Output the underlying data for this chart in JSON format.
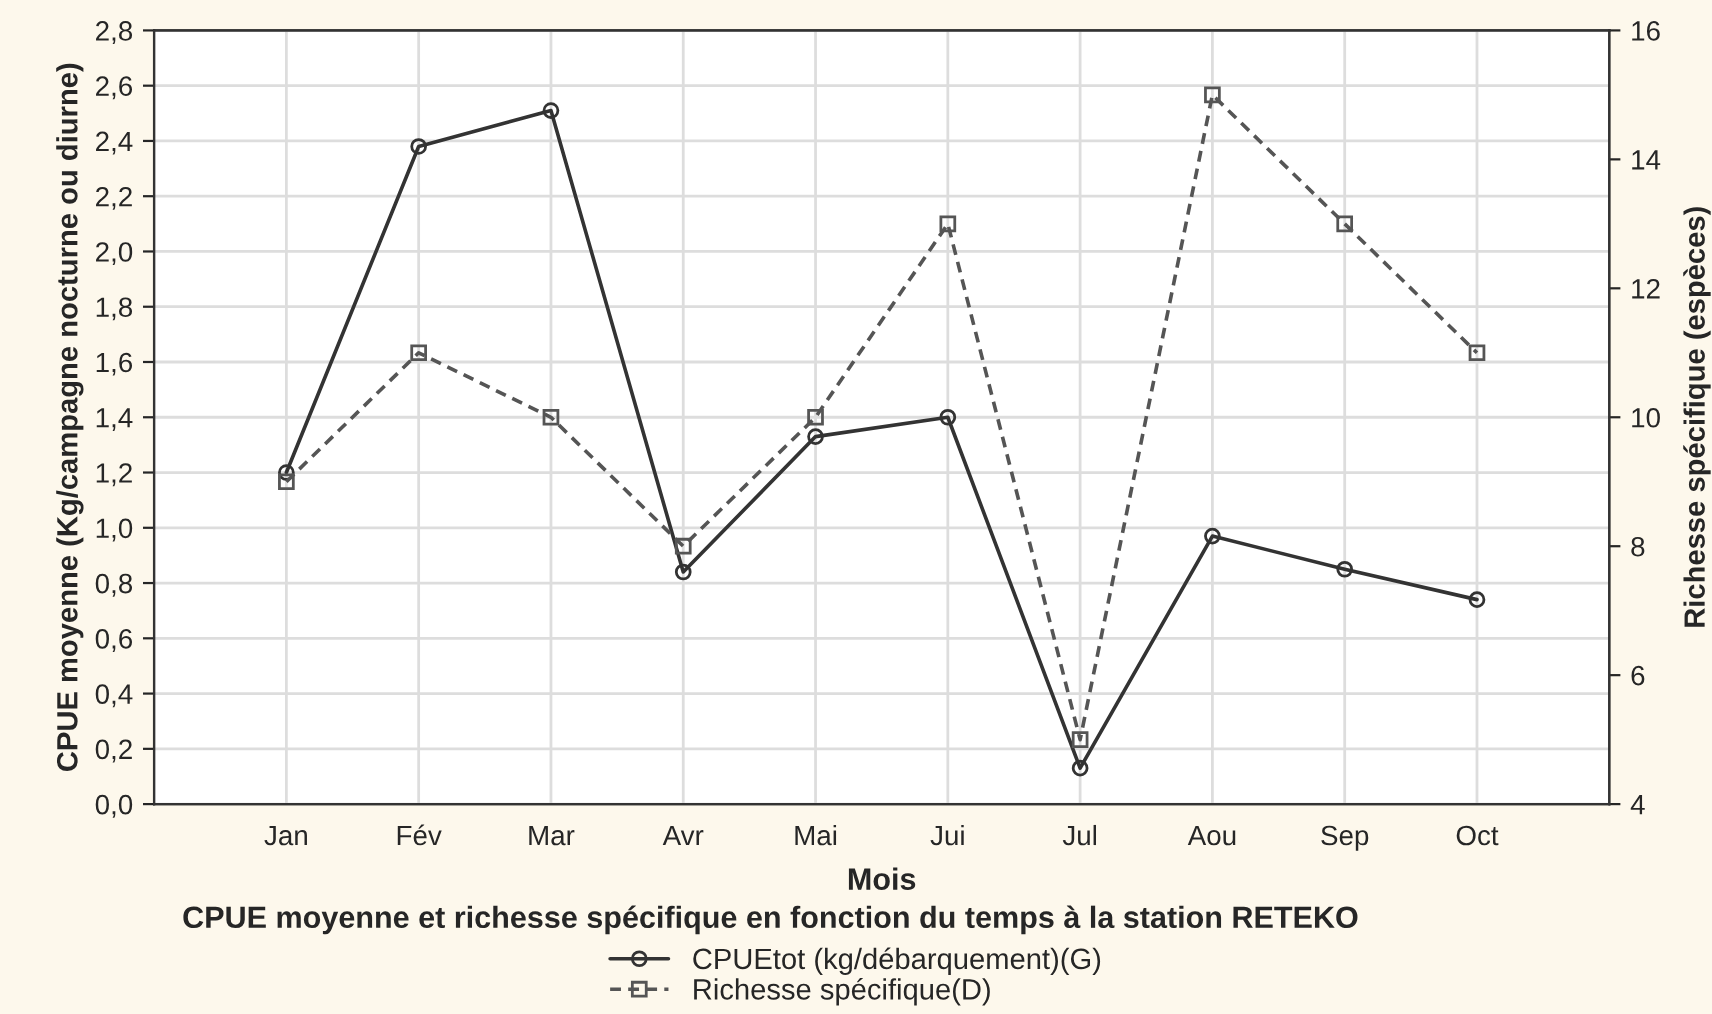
{
  "chart_data": {
    "type": "line",
    "title": "CPUE moyenne et richesse spécifique en fonction du temps à la station RETEKO",
    "xlabel": "Mois",
    "ylabel": "CPUE moyenne (Kg/campagne nocturne ou diurne)",
    "y2label": "Richesse spécifique (espèces)",
    "categories": [
      "Jan",
      "Fév",
      "Mar",
      "Avr",
      "Mai",
      "Jui",
      "Jul",
      "Aou",
      "Sep",
      "Oct"
    ],
    "series": [
      {
        "name": "CPUEtot (kg/débarquement)(G)",
        "color": "#333333",
        "values": [
          1.2,
          2.38,
          2.51,
          0.84,
          1.33,
          1.4,
          0.13,
          0.97,
          0.85,
          0.74
        ],
        "marker": "circle",
        "line_style": "solid"
      },
      {
        "name": "Richesse spécifique(D)",
        "color": "#555555",
        "axis": "y2",
        "values": [
          9,
          11,
          10,
          8,
          10,
          13,
          5,
          15,
          13,
          11
        ],
        "marker": "square",
        "line_style": "dashed"
      }
    ],
    "ylim": [
      0,
      2.8
    ],
    "yticks": [
      {
        "value": 0,
        "label": "0,0"
      },
      {
        "value": 0.2,
        "label": "0,2"
      },
      {
        "value": 0.4,
        "label": "0,4"
      },
      {
        "value": 0.6,
        "label": "0,6"
      },
      {
        "value": 0.8,
        "label": "0,8"
      },
      {
        "value": 1.0,
        "label": "1,0"
      },
      {
        "value": 1.2,
        "label": "1,2"
      },
      {
        "value": 1.4,
        "label": "1,4"
      },
      {
        "value": 1.6,
        "label": "1,6"
      },
      {
        "value": 1.8,
        "label": "1,8"
      },
      {
        "value": 2.0,
        "label": "2,0"
      },
      {
        "value": 2.2,
        "label": "2,2"
      },
      {
        "value": 2.4,
        "label": "2,4"
      },
      {
        "value": 2.6,
        "label": "2,6"
      },
      {
        "value": 2.8,
        "label": "2,8"
      }
    ],
    "y2lim": [
      4,
      16
    ],
    "y2ticks": [
      4,
      6,
      8,
      10,
      12,
      14,
      16
    ],
    "grid": true,
    "legend": "bottom"
  }
}
